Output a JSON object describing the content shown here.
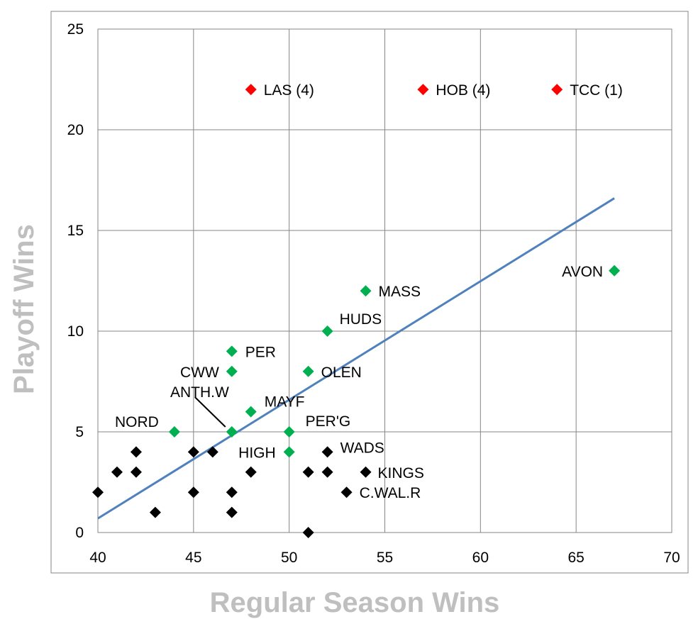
{
  "chart_data": {
    "type": "scatter",
    "title": "",
    "xlabel": "Regular Season Wins",
    "ylabel": "Playoff Wins",
    "xlim": [
      40,
      70
    ],
    "ylim": [
      0,
      25
    ],
    "xticks": [
      "40",
      "45",
      "50",
      "55",
      "60",
      "65",
      "70"
    ],
    "yticks": [
      "0",
      "5",
      "10",
      "15",
      "20",
      "25"
    ],
    "grid": true,
    "legend": "none",
    "colors": {
      "red": "#ff0000",
      "green": "#00b050",
      "black": "#000000",
      "trend": "#4f81bd",
      "axis_title": "#bfbfbf",
      "grid": "#868686"
    },
    "series": [
      {
        "color": "red",
        "points": [
          {
            "x": 48,
            "y": 22,
            "label": "LAS (4)"
          },
          {
            "x": 57,
            "y": 22,
            "label": "HOB (4)"
          },
          {
            "x": 64,
            "y": 22,
            "label": "TCC (1)"
          }
        ]
      },
      {
        "color": "green",
        "points": [
          {
            "x": 67,
            "y": 13,
            "label": "AVON"
          },
          {
            "x": 54,
            "y": 12,
            "label": "MASS"
          },
          {
            "x": 52,
            "y": 10,
            "label": "HUDS"
          },
          {
            "x": 47,
            "y": 9,
            "label": "PER"
          },
          {
            "x": 47,
            "y": 8,
            "label": "CWW"
          },
          {
            "x": 51,
            "y": 8,
            "label": "OLEN"
          },
          {
            "x": 48,
            "y": 6,
            "label": "MAYF"
          },
          {
            "x": 44,
            "y": 5,
            "label": "NORD"
          },
          {
            "x": 47,
            "y": 5,
            "label": "ANTH.W"
          },
          {
            "x": 50,
            "y": 5,
            "label": "PER'G"
          },
          {
            "x": 50,
            "y": 4,
            "label": "HIGH"
          }
        ]
      },
      {
        "color": "black",
        "points": [
          {
            "x": 40,
            "y": 2
          },
          {
            "x": 41,
            "y": 3
          },
          {
            "x": 42,
            "y": 4
          },
          {
            "x": 42,
            "y": 3
          },
          {
            "x": 43,
            "y": 1
          },
          {
            "x": 45,
            "y": 4
          },
          {
            "x": 45,
            "y": 2
          },
          {
            "x": 46,
            "y": 4
          },
          {
            "x": 47,
            "y": 2
          },
          {
            "x": 47,
            "y": 1
          },
          {
            "x": 48,
            "y": 3
          },
          {
            "x": 51,
            "y": 3
          },
          {
            "x": 51,
            "y": 0
          },
          {
            "x": 52,
            "y": 4,
            "label": "WADS"
          },
          {
            "x": 52,
            "y": 3
          },
          {
            "x": 53,
            "y": 2,
            "label": "C.WAL.R"
          },
          {
            "x": 54,
            "y": 3,
            "label": "KINGS"
          }
        ]
      }
    ],
    "trendline": {
      "x": [
        40,
        67
      ],
      "y": [
        0.7,
        16.6
      ]
    }
  }
}
